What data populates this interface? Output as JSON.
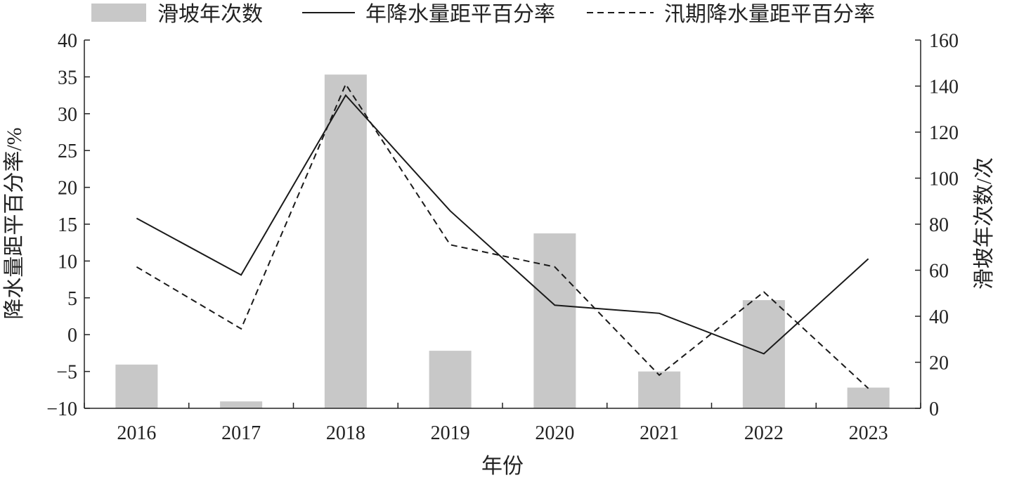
{
  "chart_data": {
    "type": "bar",
    "categories": [
      "2016",
      "2017",
      "2018",
      "2019",
      "2020",
      "2021",
      "2022",
      "2023"
    ],
    "xlabel": "年份",
    "ylabel_left": "降水量距平百分率/%",
    "ylabel_right": "滑坡年次数/次",
    "ylim_left": [
      -10,
      40
    ],
    "ylim_right": [
      0,
      160
    ],
    "yticks_left": [
      "40",
      "35",
      "30",
      "25",
      "20",
      "15",
      "10",
      "5",
      "0",
      "−5",
      "−10"
    ],
    "yticks_right": [
      "160",
      "140",
      "120",
      "100",
      "80",
      "60",
      "40",
      "20",
      "0"
    ],
    "series": [
      {
        "name": "滑坡年次数",
        "kind": "bar",
        "axis": "right",
        "color": "#c8c8c8",
        "values": [
          19,
          3,
          145,
          25,
          76,
          16,
          47,
          9
        ]
      },
      {
        "name": "年降水量距平百分率",
        "kind": "line",
        "axis": "left",
        "style": "solid",
        "color": "#1a1a1a",
        "values": [
          15.8,
          8.1,
          32.5,
          16.8,
          4.0,
          2.9,
          -2.6,
          10.3
        ]
      },
      {
        "name": "汛期降水量距平百分率",
        "kind": "line",
        "axis": "left",
        "style": "dashed",
        "color": "#1a1a1a",
        "values": [
          9.2,
          0.8,
          34.0,
          12.2,
          9.2,
          -5.5,
          5.8,
          -7.3
        ]
      }
    ],
    "legend_position": "top",
    "grid": false
  }
}
